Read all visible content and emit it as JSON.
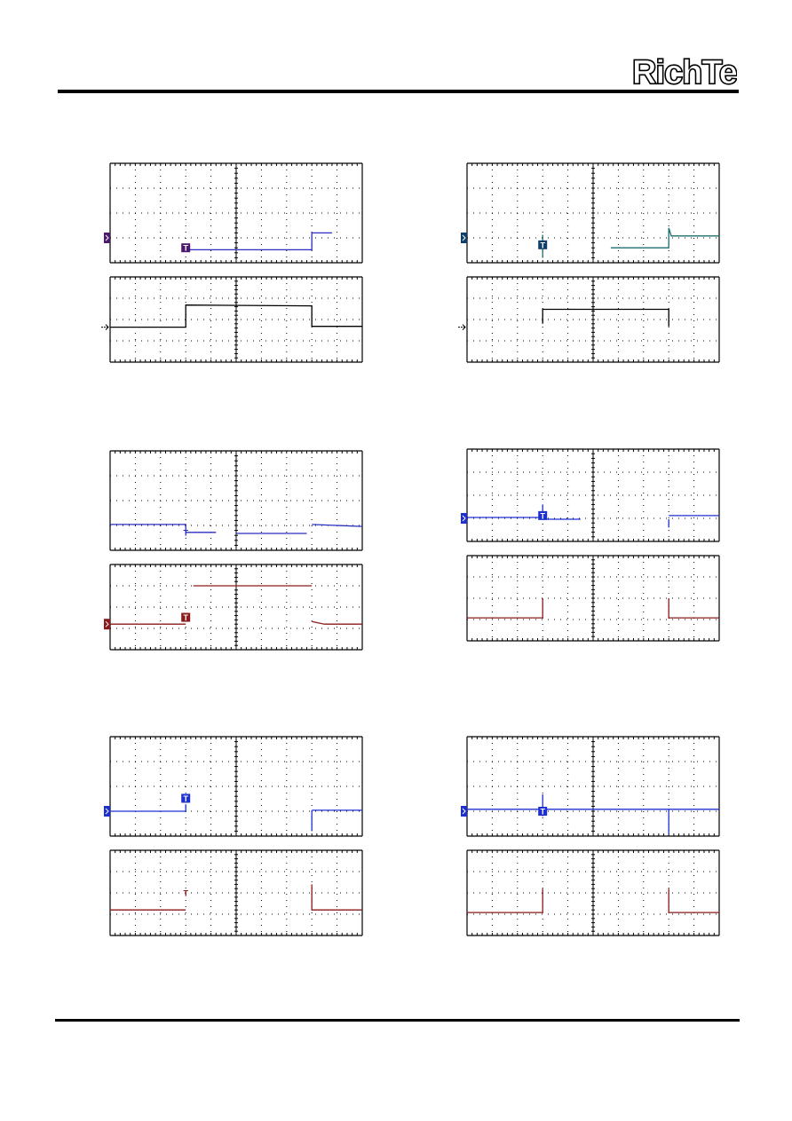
{
  "logo": {
    "text": "RichTek"
  },
  "trigger_marker": "T",
  "colors": {
    "grid": "#000000",
    "blue": "#1e2fd0",
    "teal": "#17706e",
    "darkred": "#8b1a1a",
    "black": "#000000",
    "purple": "#4b1a6e",
    "navy": "#0e3f6b"
  },
  "scopes": [
    {
      "id": "scope-1",
      "top": {
        "trace_color": "#2a2fbf",
        "ch_marker_color": "#4b1a6e",
        "trig_color": "#4b1a6e",
        "trig_filled": true,
        "trig_pos": [
          0.3,
          0.85
        ],
        "ch_level": 0.75,
        "polylines": [
          [
            [
              0.3,
              0.86
            ],
            [
              0.31,
              0.87
            ],
            [
              0.8,
              0.87
            ],
            [
              0.8,
              0.7
            ],
            [
              0.81,
              0.7
            ],
            [
              0.88,
              0.7
            ]
          ]
        ]
      },
      "bottom": {
        "trace_color": "#000000",
        "arrow_level": 0.59,
        "polylines": [
          [
            [
              0.0,
              0.59
            ],
            [
              0.3,
              0.59
            ],
            [
              0.3,
              0.33
            ],
            [
              0.8,
              0.34
            ],
            [
              0.8,
              0.58
            ],
            [
              1.0,
              0.58
            ]
          ]
        ]
      }
    },
    {
      "id": "scope-2",
      "top": {
        "trace_color": "#1b6f6c",
        "ch_marker_color": "#0e3f6b",
        "trig_color": "#0e3f6b",
        "trig_filled": true,
        "trig_pos": [
          0.3,
          0.82
        ],
        "ch_level": 0.75,
        "polylines": [
          [
            [
              0.3,
              0.72
            ],
            [
              0.3,
              0.95
            ]
          ],
          [
            [
              0.57,
              0.85
            ],
            [
              0.8,
              0.85
            ],
            [
              0.8,
              0.65
            ],
            [
              0.81,
              0.73
            ],
            [
              1.0,
              0.73
            ]
          ]
        ]
      },
      "bottom": {
        "trace_color": "#000000",
        "arrow_level": 0.59,
        "polylines": [
          [
            [
              0.3,
              0.55
            ],
            [
              0.3,
              0.38
            ],
            [
              0.8,
              0.38
            ],
            [
              0.8,
              0.58
            ]
          ]
        ]
      }
    },
    {
      "id": "scope-3",
      "top": {
        "trace_color": "#2a2fbf",
        "ch_marker_color": null,
        "trig_color": "#2a2fbf",
        "trig_filled": false,
        "trig_pos": [
          0.3,
          0.82
        ],
        "ch_level": null,
        "polylines": [
          [
            [
              0.0,
              0.74
            ],
            [
              0.3,
              0.74
            ],
            [
              0.3,
              0.82
            ],
            [
              0.42,
              0.82
            ]
          ],
          [
            [
              0.5,
              0.83
            ],
            [
              0.78,
              0.83
            ]
          ],
          [
            [
              0.8,
              0.74
            ],
            [
              1.0,
              0.76
            ]
          ]
        ]
      },
      "bottom": {
        "trace_color": "#8b1a1a",
        "ch_marker_color": "#8b1a1a",
        "trig_color": "#8b1a1a",
        "trig_filled": true,
        "trig_pos": [
          0.3,
          0.62
        ],
        "ch_level": 0.7,
        "polylines": [
          [
            [
              0.0,
              0.7
            ],
            [
              0.3,
              0.7
            ]
          ],
          [
            [
              0.33,
              0.25
            ],
            [
              0.8,
              0.25
            ]
          ],
          [
            [
              0.8,
              0.67
            ],
            [
              0.85,
              0.7
            ],
            [
              1.0,
              0.7
            ]
          ]
        ]
      }
    },
    {
      "id": "scope-4",
      "top": {
        "trace_color": "#1e2fd0",
        "ch_marker_color": "#1e2fd0",
        "trig_color": "#1e2fd0",
        "trig_filled": true,
        "trig_pos": [
          0.3,
          0.72
        ],
        "ch_level": 0.75,
        "polylines": [
          [
            [
              0.0,
              0.74
            ],
            [
              0.3,
              0.74
            ],
            [
              0.3,
              0.6
            ],
            [
              0.3,
              0.76
            ],
            [
              0.45,
              0.76
            ]
          ],
          [
            [
              0.8,
              0.76
            ],
            [
              0.8,
              0.85
            ]
          ],
          [
            [
              0.8,
              0.72
            ],
            [
              1.0,
              0.72
            ]
          ]
        ]
      },
      "bottom": {
        "trace_color": "#8b1a1a",
        "polylines": [
          [
            [
              0.0,
              0.73
            ],
            [
              0.3,
              0.73
            ],
            [
              0.3,
              0.5
            ]
          ],
          [
            [
              0.8,
              0.5
            ],
            [
              0.8,
              0.73
            ],
            [
              1.0,
              0.73
            ]
          ]
        ]
      }
    },
    {
      "id": "scope-5",
      "top": {
        "trace_color": "#1e2fd0",
        "ch_marker_color": "#1e2fd0",
        "trig_color": "#1e2fd0",
        "trig_filled": true,
        "trig_pos": [
          0.3,
          0.62
        ],
        "ch_level": 0.75,
        "polylines": [
          [
            [
              0.0,
              0.75
            ],
            [
              0.3,
              0.75
            ],
            [
              0.3,
              0.68
            ],
            [
              0.3,
              0.74
            ]
          ],
          [
            [
              0.8,
              0.74
            ],
            [
              0.8,
              0.95
            ]
          ],
          [
            [
              0.8,
              0.74
            ],
            [
              1.0,
              0.74
            ]
          ]
        ]
      },
      "bottom": {
        "trace_color": "#8b1a1a",
        "trig_color": "#8b1a1a",
        "trig_filled": false,
        "trig_pos": [
          0.3,
          0.5
        ],
        "polylines": [
          [
            [
              0.0,
              0.7
            ],
            [
              0.3,
              0.7
            ]
          ],
          [
            [
              0.8,
              0.4
            ],
            [
              0.8,
              0.7
            ],
            [
              1.0,
              0.7
            ]
          ]
        ]
      }
    },
    {
      "id": "scope-6",
      "top": {
        "trace_color": "#1e2fd0",
        "ch_marker_color": "#1e2fd0",
        "trig_color": "#1e2fd0",
        "trig_filled": true,
        "trig_pos": [
          0.3,
          0.75
        ],
        "ch_level": 0.75,
        "polylines": [
          [
            [
              0.0,
              0.73
            ],
            [
              1.0,
              0.73
            ]
          ],
          [
            [
              0.3,
              0.58
            ],
            [
              0.3,
              0.8
            ]
          ],
          [
            [
              0.8,
              0.73
            ],
            [
              0.8,
              0.98
            ]
          ]
        ]
      },
      "bottom": {
        "trace_color": "#8b1a1a",
        "polylines": [
          [
            [
              0.0,
              0.73
            ],
            [
              0.3,
              0.73
            ],
            [
              0.3,
              0.45
            ]
          ],
          [
            [
              0.8,
              0.45
            ],
            [
              0.8,
              0.73
            ],
            [
              1.0,
              0.73
            ]
          ]
        ]
      }
    }
  ]
}
